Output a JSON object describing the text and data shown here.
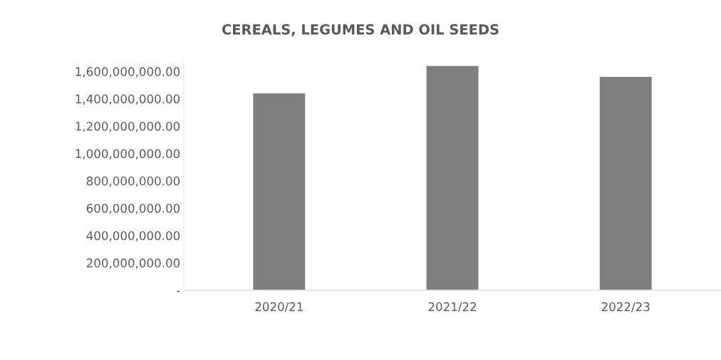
{
  "chart_data": {
    "type": "bar",
    "title": "CEREALS, LEGUMES AND OIL SEEDS",
    "categories": [
      "2020/21",
      "2021/22",
      "2022/23"
    ],
    "values": [
      1440000000,
      1640000000,
      1560000000
    ],
    "color": "#7f7f7f",
    "ylim": [
      0,
      1680000000
    ],
    "yticks": [
      {
        "value": 0,
        "label": "-"
      },
      {
        "value": 200000000,
        "label": "200,000,000.00"
      },
      {
        "value": 400000000,
        "label": "400,000,000.00"
      },
      {
        "value": 600000000,
        "label": "600,000,000.00"
      },
      {
        "value": 800000000,
        "label": "800,000,000.00"
      },
      {
        "value": 1000000000,
        "label": "1,000,000,000.00"
      },
      {
        "value": 1200000000,
        "label": "1,200,000,000.00"
      },
      {
        "value": 1400000000,
        "label": "1,400,000,000.00"
      },
      {
        "value": 1600000000,
        "label": "1,600,000,000.00"
      }
    ],
    "grid": false
  }
}
